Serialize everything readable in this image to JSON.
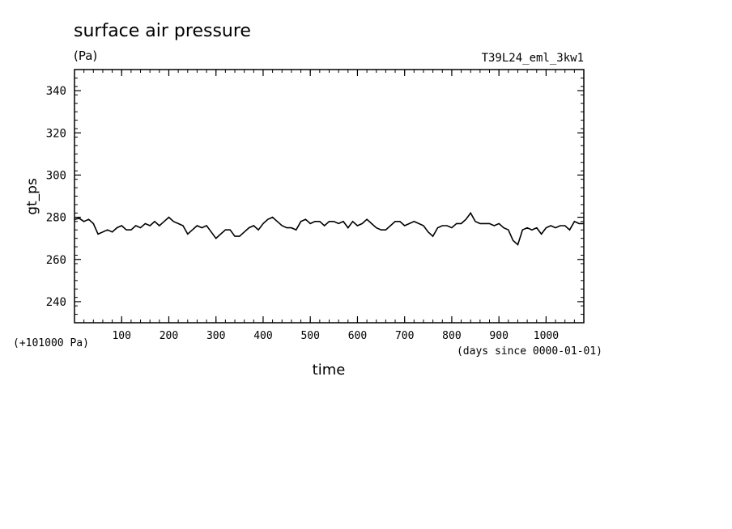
{
  "chart_data": {
    "type": "line",
    "title": "surface air pressure",
    "units": "(Pa)",
    "experiment": "T39L24_eml_3kw1",
    "ylabel": "gt_ps",
    "xlabel": "time",
    "y_offset_label": "(+101000 Pa)",
    "x_units_label": "(days since 0000-01-01)",
    "xlim": [
      0,
      1080
    ],
    "ylim": [
      230,
      350
    ],
    "x_ticks": [
      100,
      200,
      300,
      400,
      500,
      600,
      700,
      800,
      900,
      1000
    ],
    "x_tick_labels": [
      "100",
      "200",
      "300",
      "400",
      "500",
      "600",
      "700",
      "800",
      "900",
      "1000"
    ],
    "y_ticks": [
      240,
      260,
      280,
      300,
      320,
      340
    ],
    "y_tick_labels": [
      "240",
      "260",
      "280",
      "300",
      "320",
      "340"
    ],
    "grid": false,
    "series": [
      {
        "x": [
          0,
          10,
          20,
          30,
          40,
          50,
          60,
          70,
          80,
          90,
          100,
          110,
          120,
          130,
          140,
          150,
          160,
          170,
          180,
          190,
          200,
          210,
          220,
          230,
          240,
          250,
          260,
          270,
          280,
          290,
          300,
          310,
          320,
          330,
          340,
          350,
          360,
          370,
          380,
          390,
          400,
          410,
          420,
          430,
          440,
          450,
          460,
          470,
          480,
          490,
          500,
          510,
          520,
          530,
          540,
          550,
          560,
          570,
          580,
          590,
          600,
          610,
          620,
          630,
          640,
          650,
          660,
          670,
          680,
          690,
          700,
          710,
          720,
          730,
          740,
          750,
          760,
          770,
          780,
          790,
          800,
          810,
          820,
          830,
          840,
          850,
          860,
          870,
          880,
          890,
          900,
          910,
          920,
          930,
          940,
          950,
          960,
          970,
          980,
          990,
          1000,
          1010,
          1020,
          1030,
          1040,
          1050,
          1060,
          1070,
          1080
        ],
        "values": [
          279,
          279.5,
          278,
          279,
          277,
          272,
          273,
          274,
          273,
          275,
          276,
          274,
          274,
          276,
          275,
          277,
          276,
          278,
          276,
          278,
          280,
          278,
          277,
          276,
          272,
          274,
          276,
          275,
          276,
          273,
          270,
          272,
          274,
          274,
          271,
          271,
          273,
          275,
          276,
          274,
          277,
          279,
          280,
          278,
          276,
          275,
          275,
          274,
          278,
          279,
          277,
          278,
          278,
          276,
          278,
          278,
          277,
          278,
          275,
          278,
          276,
          277,
          279,
          277,
          275,
          274,
          274,
          276,
          278,
          278,
          276,
          277,
          278,
          277,
          276,
          273,
          271,
          275,
          276,
          276,
          275,
          277,
          277,
          279,
          282,
          278,
          277,
          277,
          277,
          276,
          277,
          275,
          274,
          269,
          267,
          274,
          275,
          274,
          275,
          272,
          275,
          276,
          275,
          276,
          276,
          274,
          278,
          277,
          277
        ]
      }
    ]
  }
}
